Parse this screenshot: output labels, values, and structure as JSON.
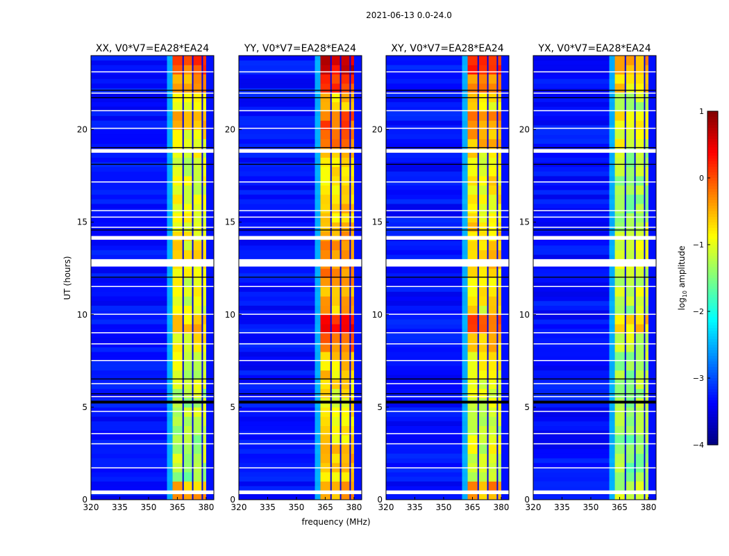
{
  "chart_data": {
    "type": "heatmap",
    "title": "2021-06-13 0.0-24.0",
    "xlabel": "frequency (MHz)",
    "ylabel": "UT (hours)",
    "xlim": [
      320,
      384
    ],
    "ylim": [
      0,
      24
    ],
    "xticks": [
      320,
      335,
      350,
      365,
      380
    ],
    "yticks": [
      0,
      5,
      10,
      15,
      20
    ],
    "colorbar": {
      "label": "log10 amplitude",
      "label_main": "log",
      "label_sub": "10",
      "label_tail": " amplitude",
      "range": [
        -4,
        1
      ],
      "ticks": [
        "1",
        "0",
        "−1",
        "−2",
        "−3",
        "−4"
      ],
      "tick_values": [
        1,
        0,
        -1,
        -2,
        -3,
        -4
      ],
      "colormap": "jet"
    },
    "band_mhz": [
      362.5,
      380
    ],
    "band_gaps_mhz": [
      368,
      373,
      378
    ],
    "background_log_amp": -3.3,
    "flagged_white_hours": [
      [
        0.3,
        0.5
      ],
      [
        1.7,
        1.75
      ],
      [
        3.0,
        3.05
      ],
      [
        3.55,
        3.6
      ],
      [
        4.75,
        4.8
      ],
      [
        5.55,
        5.6
      ],
      [
        6.25,
        6.3
      ],
      [
        7.5,
        7.55
      ],
      [
        8.4,
        8.45
      ],
      [
        9.0,
        9.05
      ],
      [
        10.0,
        10.05
      ],
      [
        11.5,
        11.55
      ],
      [
        12.6,
        13.0
      ],
      [
        14.05,
        14.25
      ],
      [
        14.7,
        14.75
      ],
      [
        15.25,
        15.3
      ],
      [
        15.6,
        15.65
      ],
      [
        17.15,
        17.2
      ],
      [
        18.75,
        18.95
      ],
      [
        20.05,
        20.1
      ],
      [
        21.0,
        21.05
      ],
      [
        21.95,
        22.0
      ],
      [
        23.1,
        23.15
      ]
    ],
    "flagged_black_hours": [
      [
        5.2,
        5.35
      ],
      [
        5.7,
        5.75
      ],
      [
        6.5,
        6.55
      ],
      [
        12.0,
        12.05
      ],
      [
        14.55,
        14.6
      ],
      [
        18.1,
        18.15
      ],
      [
        19.0,
        19.05
      ],
      [
        21.7,
        21.75
      ],
      [
        22.1,
        22.15
      ]
    ],
    "panels": [
      {
        "title": "XX, V0*V7=EA28*EA24",
        "band_profile": [
          -0.5,
          -1.3,
          -1.2,
          -1.3,
          -1.1,
          -1.2,
          -1.2,
          -1.1,
          -0.9,
          -0.6,
          -1.0,
          -0.9,
          -0.8,
          -0.8,
          -0.8,
          -0.9,
          -1.0,
          -1.0,
          -1.0,
          -0.8,
          -0.6,
          -0.9,
          -0.5,
          0.0
        ]
      },
      {
        "title": "YY, V0*V7=EA28*EA24",
        "band_profile": [
          -0.3,
          -0.6,
          -0.6,
          -0.7,
          -0.7,
          -0.8,
          -0.7,
          -0.6,
          -0.2,
          0.3,
          -0.5,
          -0.4,
          -0.3,
          -0.3,
          -0.5,
          -0.6,
          -0.6,
          -0.7,
          -0.6,
          -0.2,
          -0.1,
          -0.6,
          0.1,
          0.6
        ]
      },
      {
        "title": "XY, V0*V7=EA28*EA24",
        "band_profile": [
          -0.4,
          -1.1,
          -1.0,
          -1.1,
          -1.0,
          -1.0,
          -1.0,
          -0.9,
          -0.6,
          0.0,
          -0.8,
          -0.7,
          -0.6,
          -0.5,
          -0.7,
          -0.8,
          -0.8,
          -0.8,
          -0.8,
          -0.5,
          -0.3,
          -0.8,
          -0.2,
          0.3
        ]
      },
      {
        "title": "YX, V0*V7=EA28*EA24",
        "band_profile": [
          -1.2,
          -1.4,
          -1.4,
          -1.4,
          -1.3,
          -1.3,
          -1.3,
          -1.3,
          -1.1,
          -0.7,
          -1.2,
          -1.1,
          -1.1,
          -1.1,
          -1.2,
          -1.3,
          -1.3,
          -1.3,
          -1.3,
          -1.0,
          -0.9,
          -1.2,
          -0.7,
          -0.4
        ]
      }
    ]
  }
}
